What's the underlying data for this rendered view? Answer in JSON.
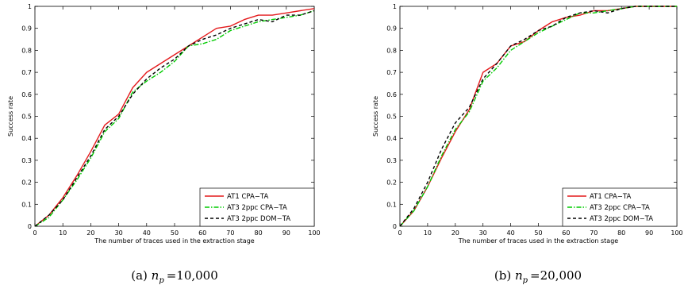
{
  "colors": {
    "at1": "#e41a1c",
    "at3_cpa": "#00cc00",
    "at3_dom": "#000000"
  },
  "captions": [
    {
      "prefix": "(a) ",
      "var": "n",
      "sub": "p",
      "value": "=10,000"
    },
    {
      "prefix": "(b) ",
      "var": "n",
      "sub": "p",
      "value": "=20,000"
    }
  ],
  "chart_data": [
    {
      "type": "line",
      "xlabel": "The number of traces used in the extraction stage",
      "ylabel": "Success rate",
      "xlim": [
        0,
        100
      ],
      "ylim": [
        0,
        1
      ],
      "xticks": [
        "0",
        "10",
        "20",
        "30",
        "40",
        "50",
        "60",
        "70",
        "80",
        "90",
        "100"
      ],
      "yticks": [
        "0",
        "0.1",
        "0.2",
        "0.3",
        "0.4",
        "0.5",
        "0.6",
        "0.7",
        "0.8",
        "0.9",
        "1"
      ],
      "legend_position": "bottom-right",
      "x": [
        0,
        5,
        10,
        15,
        20,
        25,
        30,
        35,
        40,
        45,
        50,
        55,
        60,
        65,
        70,
        75,
        80,
        85,
        90,
        95,
        100
      ],
      "series": [
        {
          "name": "AT1 CPA−TA",
          "style": "solid",
          "color_key": "at1",
          "values": [
            0,
            0.05,
            0.13,
            0.23,
            0.34,
            0.46,
            0.51,
            0.63,
            0.7,
            0.74,
            0.78,
            0.82,
            0.86,
            0.9,
            0.91,
            0.94,
            0.96,
            0.96,
            0.97,
            0.98,
            0.99
          ]
        },
        {
          "name": "AT3 2ppc CPA−TA",
          "style": "dashdot",
          "color_key": "at3_cpa",
          "values": [
            0,
            0.04,
            0.12,
            0.21,
            0.31,
            0.43,
            0.49,
            0.61,
            0.66,
            0.7,
            0.75,
            0.82,
            0.83,
            0.85,
            0.89,
            0.91,
            0.93,
            0.94,
            0.95,
            0.96,
            0.98
          ]
        },
        {
          "name": "AT3 2ppc DOM−TA",
          "style": "dashed",
          "color_key": "at3_dom",
          "values": [
            0,
            0.05,
            0.12,
            0.22,
            0.32,
            0.44,
            0.5,
            0.6,
            0.67,
            0.72,
            0.76,
            0.82,
            0.85,
            0.87,
            0.9,
            0.92,
            0.94,
            0.93,
            0.96,
            0.96,
            0.98
          ]
        }
      ]
    },
    {
      "type": "line",
      "xlabel": "The number of traces used in the extraction stage",
      "ylabel": "Success rate",
      "xlim": [
        0,
        100
      ],
      "ylim": [
        0,
        1
      ],
      "xticks": [
        "0",
        "10",
        "20",
        "30",
        "40",
        "50",
        "60",
        "70",
        "80",
        "90",
        "100"
      ],
      "yticks": [
        "0",
        "0.1",
        "0.2",
        "0.3",
        "0.4",
        "0.5",
        "0.6",
        "0.7",
        "0.8",
        "0.9",
        "1"
      ],
      "legend_position": "bottom-right",
      "x": [
        0,
        5,
        10,
        15,
        20,
        25,
        30,
        35,
        40,
        45,
        50,
        55,
        60,
        65,
        70,
        75,
        80,
        85,
        90,
        95,
        100
      ],
      "series": [
        {
          "name": "AT1 CPA−TA",
          "style": "solid",
          "color_key": "at1",
          "values": [
            0,
            0.07,
            0.18,
            0.31,
            0.43,
            0.53,
            0.7,
            0.74,
            0.82,
            0.84,
            0.89,
            0.93,
            0.95,
            0.96,
            0.98,
            0.98,
            0.99,
            1.0,
            1.0,
            1.0,
            1.0
          ]
        },
        {
          "name": "AT3 2ppc CPA−TA",
          "style": "dashdot",
          "color_key": "at3_cpa",
          "values": [
            0,
            0.07,
            0.18,
            0.32,
            0.44,
            0.52,
            0.66,
            0.72,
            0.8,
            0.84,
            0.88,
            0.91,
            0.94,
            0.97,
            0.97,
            0.98,
            0.99,
            1.0,
            1.0,
            1.0,
            1.0
          ]
        },
        {
          "name": "AT3 2ppc DOM−TA",
          "style": "dashed",
          "color_key": "at3_dom",
          "values": [
            0,
            0.08,
            0.2,
            0.35,
            0.47,
            0.54,
            0.67,
            0.74,
            0.82,
            0.85,
            0.89,
            0.91,
            0.95,
            0.97,
            0.98,
            0.97,
            0.99,
            1.0,
            1.0,
            1.0,
            1.0
          ]
        }
      ]
    }
  ]
}
